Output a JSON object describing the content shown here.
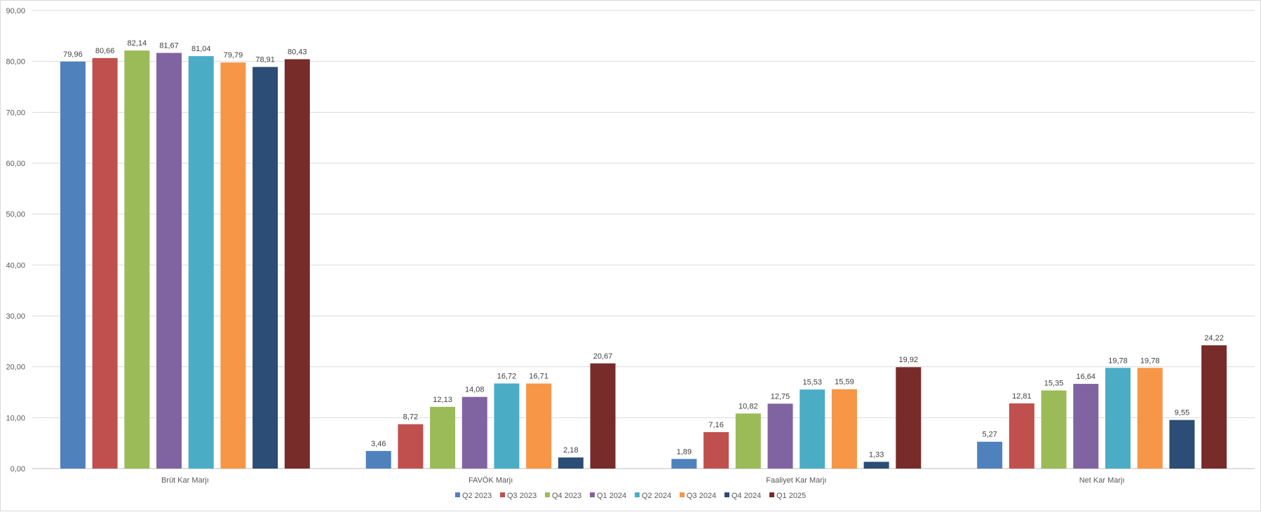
{
  "chart_data": {
    "type": "bar",
    "title": "",
    "xlabel": "",
    "ylabel": "",
    "ylim": [
      0,
      90
    ],
    "ytick_step": 10,
    "ytick_labels": [
      "0,00",
      "10,00",
      "20,00",
      "30,00",
      "40,00",
      "50,00",
      "60,00",
      "70,00",
      "80,00",
      "90,00"
    ],
    "grid": true,
    "legend_position": "bottom",
    "categories": [
      "Brüt Kar Marjı",
      "FAVÖK Marjı",
      "Faaliyet Kar Marjı",
      "Net Kar Marjı"
    ],
    "series": [
      {
        "name": "Q2 2023",
        "color": "#4f81bd",
        "values": [
          79.96,
          3.46,
          1.89,
          5.27
        ],
        "labels": [
          "79,96",
          "3,46",
          "1,89",
          "5,27"
        ]
      },
      {
        "name": "Q3 2023",
        "color": "#c0504d",
        "values": [
          80.66,
          8.72,
          7.16,
          12.81
        ],
        "labels": [
          "80,66",
          "8,72",
          "7,16",
          "12,81"
        ]
      },
      {
        "name": "Q4 2023",
        "color": "#9bbb59",
        "values": [
          82.14,
          12.13,
          10.82,
          15.35
        ],
        "labels": [
          "82,14",
          "12,13",
          "10,82",
          "15,35"
        ]
      },
      {
        "name": "Q1 2024",
        "color": "#8064a2",
        "values": [
          81.67,
          14.08,
          12.75,
          16.64
        ],
        "labels": [
          "81,67",
          "14,08",
          "12,75",
          "16,64"
        ]
      },
      {
        "name": "Q2 2024",
        "color": "#4bacc6",
        "values": [
          81.04,
          16.72,
          15.53,
          19.78
        ],
        "labels": [
          "81,04",
          "16,72",
          "15,53",
          "19,78"
        ]
      },
      {
        "name": "Q3 2024",
        "color": "#f79646",
        "values": [
          79.79,
          16.71,
          15.59,
          19.78
        ],
        "labels": [
          "79,79",
          "16,71",
          "15,59",
          "19,78"
        ]
      },
      {
        "name": "Q4 2024",
        "color": "#2c4d75",
        "values": [
          78.91,
          2.18,
          1.33,
          9.55
        ],
        "labels": [
          "78,91",
          "2,18",
          "1,33",
          "9,55"
        ]
      },
      {
        "name": "Q1 2025",
        "color": "#772c2a",
        "values": [
          80.43,
          20.67,
          19.92,
          24.22
        ],
        "labels": [
          "80,43",
          "20,67",
          "19,92",
          "24,22"
        ]
      }
    ]
  }
}
